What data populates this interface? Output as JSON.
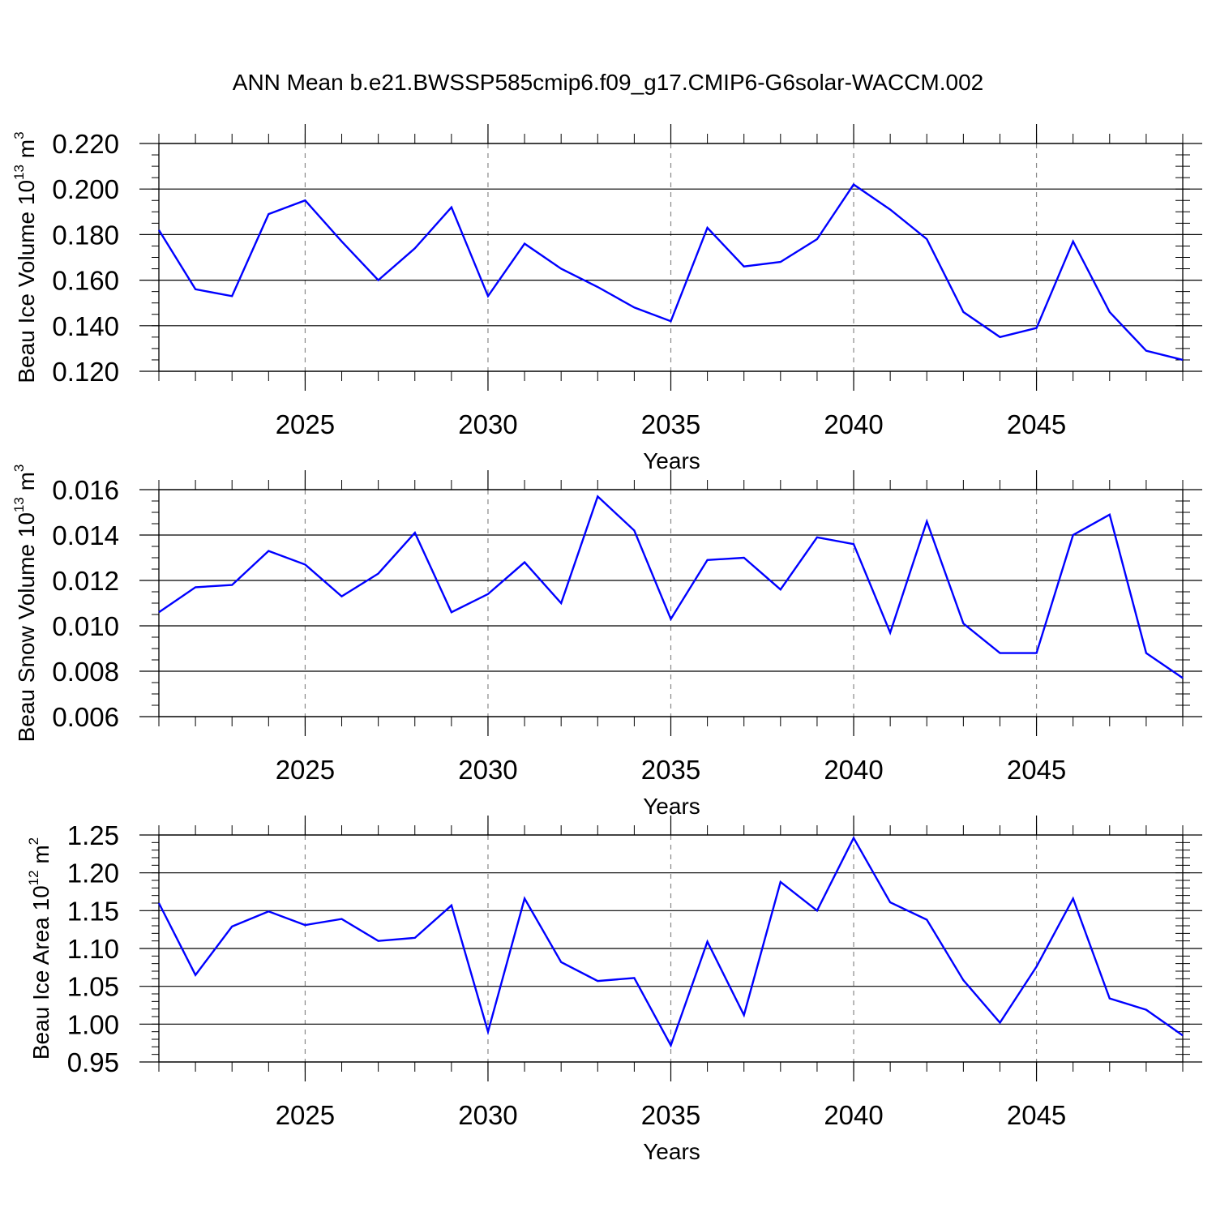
{
  "title": "ANN Mean b.e21.BWSSP585cmip6.f09_g17.CMIP6-G6solar-WACCM.002",
  "chart_data": [
    {
      "type": "line",
      "title": "ANN Mean b.e21.BWSSP585cmip6.f09_g17.CMIP6-G6solar-WACCM.002",
      "xlabel": "Years",
      "ylabel": {
        "prefix": "Beau Ice Volume 10",
        "exponent": "13",
        "unit": "m",
        "unit_exponent": "3"
      },
      "xlim": [
        2021,
        2049
      ],
      "ylim": [
        0.12,
        0.22
      ],
      "y_ticks": [
        "0.120",
        "0.140",
        "0.160",
        "0.180",
        "0.200",
        "0.220"
      ],
      "x_ticks": [
        "2025",
        "2030",
        "2035",
        "2040",
        "2045"
      ],
      "line_color": "#0000ff",
      "x": [
        2021,
        2022,
        2023,
        2024,
        2025,
        2026,
        2027,
        2028,
        2029,
        2030,
        2031,
        2032,
        2033,
        2034,
        2035,
        2036,
        2037,
        2038,
        2039,
        2040,
        2041,
        2042,
        2043,
        2044,
        2045,
        2046,
        2047,
        2048,
        2049
      ],
      "values": [
        0.182,
        0.156,
        0.153,
        0.189,
        0.195,
        0.177,
        0.16,
        0.174,
        0.192,
        0.153,
        0.176,
        0.165,
        0.157,
        0.148,
        0.142,
        0.183,
        0.166,
        0.168,
        0.178,
        0.202,
        0.191,
        0.178,
        0.146,
        0.135,
        0.139,
        0.177,
        0.146,
        0.129,
        0.125
      ]
    },
    {
      "type": "line",
      "xlabel": "Years",
      "ylabel": {
        "prefix": "Beau Snow Volume 10",
        "exponent": "13",
        "unit": "m",
        "unit_exponent": "3"
      },
      "xlim": [
        2021,
        2049
      ],
      "ylim": [
        0.006,
        0.016
      ],
      "y_ticks": [
        "0.006",
        "0.008",
        "0.010",
        "0.012",
        "0.014",
        "0.016"
      ],
      "x_ticks": [
        "2025",
        "2030",
        "2035",
        "2040",
        "2045"
      ],
      "line_color": "#0000ff",
      "x": [
        2021,
        2022,
        2023,
        2024,
        2025,
        2026,
        2027,
        2028,
        2029,
        2030,
        2031,
        2032,
        2033,
        2034,
        2035,
        2036,
        2037,
        2038,
        2039,
        2040,
        2041,
        2042,
        2043,
        2044,
        2045,
        2046,
        2047,
        2048,
        2049
      ],
      "values": [
        0.0106,
        0.0117,
        0.0118,
        0.0133,
        0.0127,
        0.0113,
        0.0123,
        0.0141,
        0.0106,
        0.0114,
        0.0128,
        0.011,
        0.0157,
        0.0142,
        0.0103,
        0.0129,
        0.013,
        0.0116,
        0.0139,
        0.0136,
        0.0097,
        0.0146,
        0.0101,
        0.0088,
        0.0088,
        0.014,
        0.0149,
        0.0088,
        0.0077
      ]
    },
    {
      "type": "line",
      "xlabel": "Years",
      "ylabel": {
        "prefix": "Beau Ice Area 10",
        "exponent": "12",
        "unit": "m",
        "unit_exponent": "2"
      },
      "xlim": [
        2021,
        2049
      ],
      "ylim": [
        0.95,
        1.25
      ],
      "y_ticks": [
        "0.95",
        "1.00",
        "1.05",
        "1.10",
        "1.15",
        "1.20",
        "1.25"
      ],
      "x_ticks": [
        "2025",
        "2030",
        "2035",
        "2040",
        "2045"
      ],
      "line_color": "#0000ff",
      "x": [
        2021,
        2022,
        2023,
        2024,
        2025,
        2026,
        2027,
        2028,
        2029,
        2030,
        2031,
        2032,
        2033,
        2034,
        2035,
        2036,
        2037,
        2038,
        2039,
        2040,
        2041,
        2042,
        2043,
        2044,
        2045,
        2046,
        2047,
        2048,
        2049
      ],
      "values": [
        1.16,
        1.065,
        1.129,
        1.149,
        1.131,
        1.139,
        1.11,
        1.114,
        1.157,
        0.99,
        1.166,
        1.082,
        1.057,
        1.061,
        0.972,
        1.109,
        1.012,
        1.188,
        1.15,
        1.246,
        1.161,
        1.138,
        1.058,
        1.002,
        1.076,
        1.166,
        1.034,
        1.019,
        0.985
      ]
    }
  ]
}
